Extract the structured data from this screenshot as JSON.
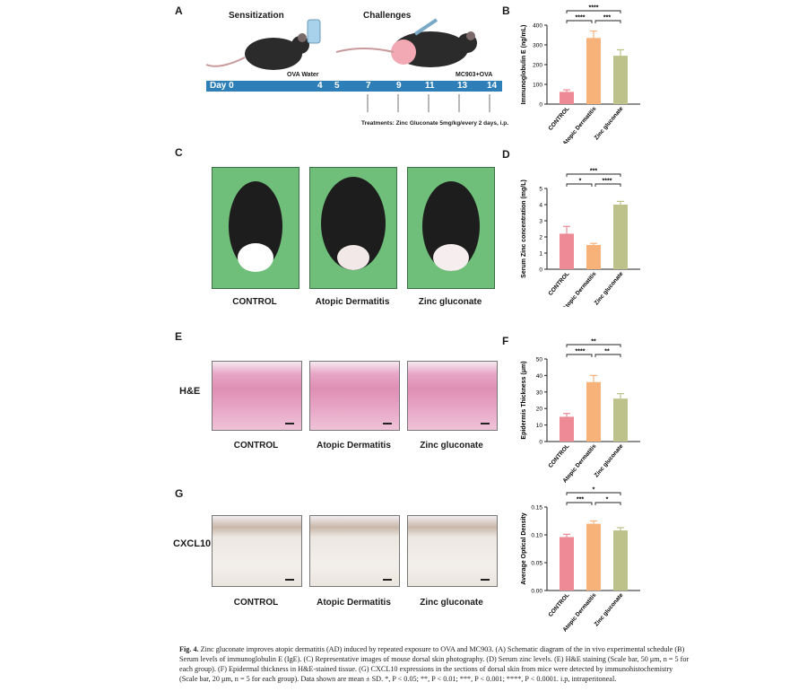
{
  "panels": {
    "A": "A",
    "B": "B",
    "C": "C",
    "D": "D",
    "E": "E",
    "F": "F",
    "G": "G"
  },
  "schedule": {
    "sensitization": "Sensitization",
    "challenges": "Challenges",
    "ova_water": "OVA Water",
    "mc903_ova": "MC903+OVA",
    "day_label": "Day 0",
    "days": [
      "4",
      "5",
      "7",
      "9",
      "11",
      "13",
      "14"
    ],
    "treatment": "Treatments: Zinc Gluconate 5mg/kg/every 2 days, i.p."
  },
  "photo_captions": [
    "CONTROL",
    "Atopic Dermatitis",
    "Zinc gluconate"
  ],
  "he_label": "H&E",
  "he_captions": [
    "CONTROL",
    "Atopic Dermatitis",
    "Zinc gluconate"
  ],
  "cxcl_label": "CXCL10",
  "cxcl_captions": [
    "CONTROL",
    "Atopic Dermatitis",
    "Zinc gluconate"
  ],
  "colors": {
    "control": "#ee8a96",
    "ad": "#f7b27a",
    "zinc": "#bcc28a",
    "timeline": "#2e7fb8"
  },
  "chart_data": [
    {
      "id": "B",
      "type": "bar",
      "categories": [
        "CONTROL",
        "Atopic Dermatitis",
        "Zinc gluconate"
      ],
      "values": [
        62,
        335,
        245
      ],
      "errors": [
        10,
        35,
        30
      ],
      "ylabel": "Immunoglobulin E (ng/mL)",
      "ylim": [
        0,
        400
      ],
      "yticks": [
        0,
        100,
        200,
        300,
        400
      ],
      "sig": [
        {
          "a": 0,
          "b": 2,
          "label": "****"
        },
        {
          "a": 0,
          "b": 1,
          "label": "****"
        },
        {
          "a": 1,
          "b": 2,
          "label": "***"
        }
      ]
    },
    {
      "id": "D",
      "type": "bar",
      "categories": [
        "CONTROL",
        "Atopic Dermatitis",
        "Zinc gluconate"
      ],
      "values": [
        2.2,
        1.5,
        4.0
      ],
      "errors": [
        0.45,
        0.1,
        0.2
      ],
      "ylabel": "Serum Zinc concentration (mg/L)",
      "ylim": [
        0,
        5
      ],
      "yticks": [
        0,
        1,
        2,
        3,
        4,
        5
      ],
      "sig": [
        {
          "a": 0,
          "b": 2,
          "label": "***"
        },
        {
          "a": 0,
          "b": 1,
          "label": "*"
        },
        {
          "a": 1,
          "b": 2,
          "label": "****"
        }
      ]
    },
    {
      "id": "F",
      "type": "bar",
      "categories": [
        "CONTROL",
        "Atopic Dermatitis",
        "Zinc gluconate"
      ],
      "values": [
        15,
        36,
        26
      ],
      "errors": [
        2,
        4,
        3
      ],
      "ylabel": "Epidermis Thickness (μm)",
      "ylim": [
        0,
        50
      ],
      "yticks": [
        0,
        10,
        20,
        30,
        40,
        50
      ],
      "sig": [
        {
          "a": 0,
          "b": 2,
          "label": "**"
        },
        {
          "a": 0,
          "b": 1,
          "label": "****"
        },
        {
          "a": 1,
          "b": 2,
          "label": "**"
        }
      ]
    },
    {
      "id": "G",
      "type": "bar",
      "categories": [
        "CONTROL",
        "Atopic Dermatitis",
        "Zinc gluconate"
      ],
      "values": [
        0.096,
        0.12,
        0.108
      ],
      "errors": [
        0.005,
        0.005,
        0.005
      ],
      "ylabel": "Average Optical Density",
      "ylim": [
        0,
        0.15
      ],
      "yticks": [
        0.0,
        0.05,
        0.1,
        0.15
      ],
      "sig": [
        {
          "a": 0,
          "b": 2,
          "label": "*"
        },
        {
          "a": 0,
          "b": 1,
          "label": "***"
        },
        {
          "a": 1,
          "b": 2,
          "label": "*"
        }
      ]
    }
  ],
  "caption": {
    "fig": "Fig. 4.",
    "text": "Zinc gluconate improves atopic dermatitis (AD) induced by repeated exposure to OVA and MC903. (A) Schematic diagram of the in vivo experimental schedule (B) Serum levels of immunoglobulin E (IgE). (C) Representative images of mouse dorsal skin photography. (D) Serum zinc levels. (E) H&E staining (Scale bar, 50 μm, n = 5 for each group). (F) Epidermal thickness in H&E-stained tissue. (G) CXCL10 expressions in the sections of dorsal skin from mice were detected by immunohistochemistry (Scale bar, 20 μm, n = 5 for each group). Data shown are mean ± SD. *, P < 0.05; **, P < 0.01; ***, P < 0.001; ****, P < 0.0001. i.p, intraperitoneal."
  }
}
